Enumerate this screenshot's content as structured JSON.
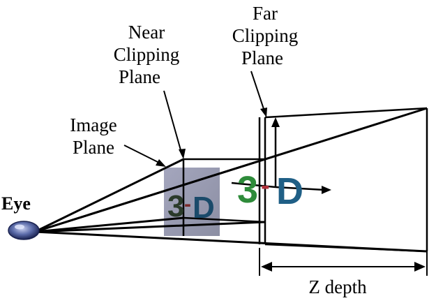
{
  "labels": {
    "near_line1": "Near",
    "near_line2": "Clipping",
    "near_line3": "Plane",
    "far_line1": "Far",
    "far_line2": "Clipping",
    "far_line3": "Plane",
    "image_line1": "Image",
    "image_line2": "Plane",
    "eye": "Eye",
    "zdepth": "Z depth"
  },
  "object_text": {
    "small_3": "3",
    "small_dash": "-",
    "small_d": "D",
    "big_3": "3",
    "big_dash": "-",
    "big_d": "D"
  },
  "colors": {
    "three": "#2e8b3a",
    "dash": "#b0303a",
    "d": "#1f5f86",
    "image_plane": "#8c8fa8"
  }
}
